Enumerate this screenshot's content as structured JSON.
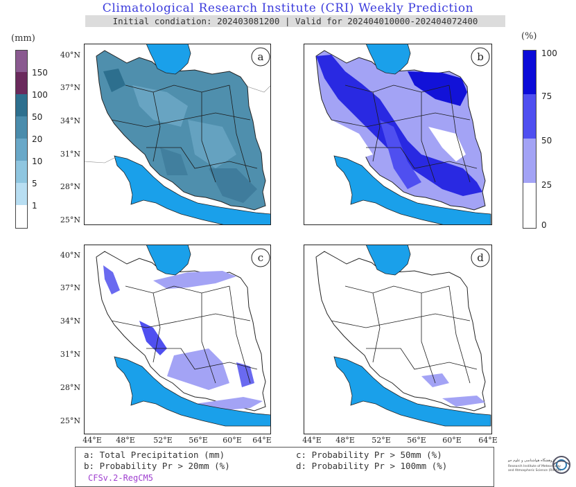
{
  "header": {
    "title": "Climatological Research Institute (CRI) Weekly Prediction",
    "subtitle": "Initial condiation: 202403081200 | Valid for 202404010000-202404072400"
  },
  "left_colorbar": {
    "unit": "(mm)",
    "levels": [
      "1",
      "5",
      "10",
      "20",
      "50",
      "100",
      "150"
    ],
    "colors": [
      "#ffffff",
      "#b8def2",
      "#8fc6e0",
      "#69a8c8",
      "#4a8cac",
      "#2d6f8e",
      "#6a2a5c",
      "#8a5a90"
    ]
  },
  "right_colorbar": {
    "unit": "(%)",
    "levels": [
      "0",
      "25",
      "50",
      "75",
      "100"
    ],
    "colors": [
      "#ffffff",
      "#a3a3f5",
      "#4f4ff0",
      "#0b0bd8"
    ]
  },
  "panels": [
    {
      "letter": "a"
    },
    {
      "letter": "b"
    },
    {
      "letter": "c"
    },
    {
      "letter": "d"
    }
  ],
  "latitude_labels": [
    "40°N",
    "37°N",
    "34°N",
    "31°N",
    "28°N",
    "25°N"
  ],
  "longitude_labels": [
    "44°E",
    "48°E",
    "52°E",
    "56°E",
    "60°E",
    "64°E"
  ],
  "legend": {
    "a": "a: Total Precipitation (mm)",
    "b": "b: Probability Pr > 20mm (%)",
    "c": "c: Probability Pr > 50mm (%)",
    "d": "d: Probability Pr > 100mm (%)",
    "model": "CFSv.2-RegCM5"
  },
  "logo": {
    "name": "cri-logo-icon",
    "text_fa": "پژوهشگاه هواشناسی و علوم جو",
    "text_en_1": "Research Institute of Meteorology",
    "text_en_2": "and Atmospheric Science (RIMAS)"
  },
  "colors": {
    "sea": "#1aa0ea",
    "title": "#3b3bdc",
    "model_text": "#a040d0"
  }
}
